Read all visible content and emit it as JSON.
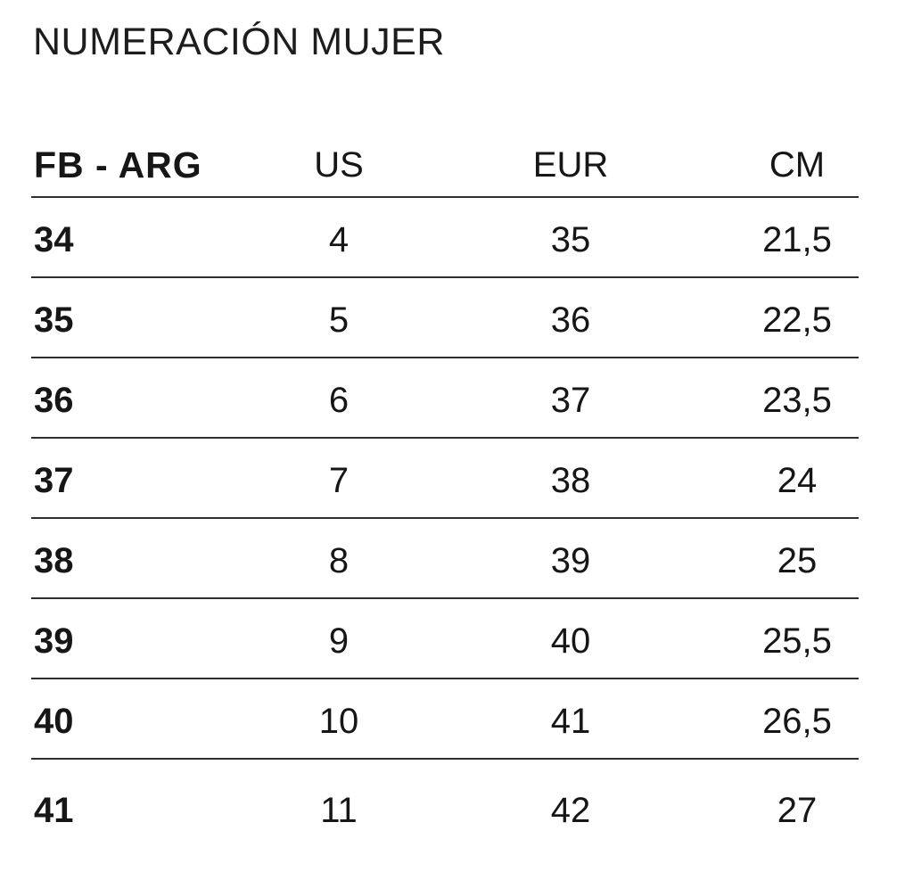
{
  "title": "NUMERACIÓN MUJER",
  "table": {
    "headers": [
      "FB - ARG",
      "US",
      "EUR",
      "CM"
    ],
    "rows": [
      [
        "34",
        "4",
        "35",
        "21,5"
      ],
      [
        "35",
        "5",
        "36",
        "22,5"
      ],
      [
        "36",
        "6",
        "37",
        "23,5"
      ],
      [
        "37",
        "7",
        "38",
        "24"
      ],
      [
        "38",
        "8",
        "39",
        "25"
      ],
      [
        "39",
        "9",
        "40",
        "25,5"
      ],
      [
        "40",
        "10",
        "41",
        "26,5"
      ],
      [
        "41",
        "11",
        "42",
        "27"
      ]
    ]
  },
  "colors": {
    "background": "#ffffff",
    "text": "#161616",
    "divider_line": "#2e2e2e"
  }
}
